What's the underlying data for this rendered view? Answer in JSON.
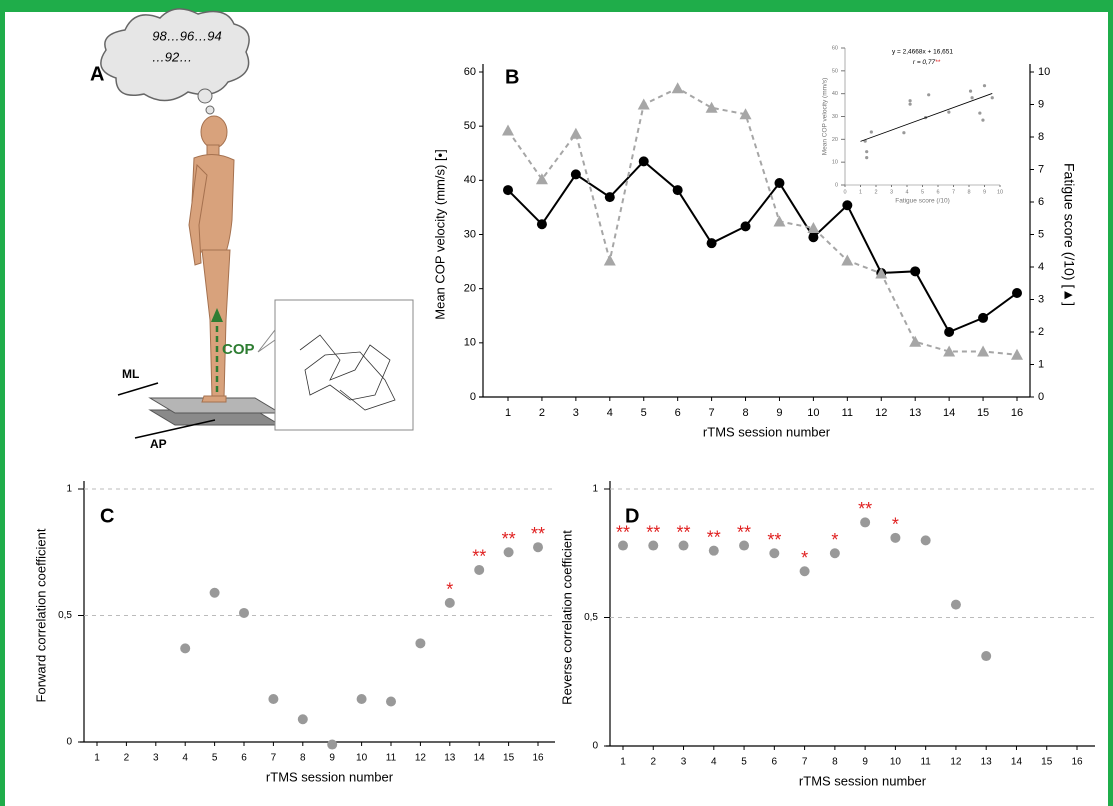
{
  "panel_a": {
    "panel": "A",
    "thought": [
      "98…96…94",
      "…92…"
    ],
    "ml": "ML",
    "cop": "COP",
    "ap": "AP"
  },
  "chart_data": [
    {
      "type": "line",
      "panel": "B",
      "categories": [
        "1",
        "2",
        "3",
        "4",
        "5",
        "6",
        "7",
        "8",
        "9",
        "10",
        "11",
        "12",
        "13",
        "14",
        "15",
        "16"
      ],
      "xlabel": "rTMS session number",
      "ylabel": "Mean COP velocity (mm/s) [•]",
      "y2label": "Fatigue score (/10) [▲]",
      "ylim": [
        0,
        60
      ],
      "yticks": [
        0,
        10,
        20,
        30,
        40,
        50,
        60
      ],
      "y2lim": [
        0,
        10
      ],
      "y2ticks": [
        0,
        1,
        2,
        3,
        4,
        5,
        6,
        7,
        8,
        9,
        10
      ],
      "series": [
        {
          "color": "#000000",
          "marker": "circle",
          "dash": false,
          "values": [
            38.2,
            31.9,
            41.1,
            36.9,
            43.5,
            38.2,
            28.4,
            31.5,
            39.5,
            29.5,
            35.4,
            22.9,
            23.2,
            12,
            14.6,
            19.2
          ]
        },
        {
          "color": "#a6a6a6",
          "marker": "triangle",
          "dash": true,
          "axis": "y2",
          "values": [
            8.2,
            6.7,
            8.1,
            4.2,
            9.0,
            9.5,
            8.9,
            8.7,
            5.4,
            5.2,
            4.2,
            3.8,
            1.7,
            1.4,
            1.4,
            1.3
          ]
        }
      ]
    },
    {
      "type": "scatter",
      "equation": "y = 2,4668x + 16,651",
      "r_text": "r = 0,77",
      "r_significance": "**",
      "xlabel": "Fatigue score (/10)",
      "ylabel": "Mean COP velocity (mm/s)",
      "xlim": [
        0,
        10
      ],
      "xticks": [
        0,
        1,
        2,
        3,
        4,
        5,
        6,
        7,
        8,
        9,
        10
      ],
      "ylim": [
        0,
        60
      ],
      "yticks": [
        0,
        10,
        20,
        30,
        40,
        50,
        60
      ],
      "x": [
        8.2,
        6.7,
        8.1,
        4.2,
        9.0,
        9.5,
        8.9,
        8.7,
        5.4,
        5.2,
        4.2,
        3.8,
        1.7,
        1.4,
        1.4,
        1.3
      ],
      "y": [
        38.2,
        31.9,
        41.1,
        36.9,
        43.5,
        38.2,
        28.4,
        31.5,
        39.5,
        29.5,
        35.4,
        22.9,
        23.2,
        12,
        14.6,
        19.2
      ],
      "color": "#999999",
      "trendline": {
        "x": [
          1,
          9.5
        ],
        "y": [
          19.1,
          40.1
        ]
      }
    },
    {
      "type": "scatter",
      "panel": "C",
      "categories": [
        "1",
        "2",
        "3",
        "4",
        "5",
        "6",
        "7",
        "8",
        "9",
        "10",
        "11",
        "12",
        "13",
        "14",
        "15",
        "16"
      ],
      "xlabel": "rTMS session number",
      "ylabel": "Forward correlation coefficient",
      "ylim": [
        0,
        1
      ],
      "yticks": [
        0,
        {
          "value": 0.5,
          "label": "0,5"
        },
        1
      ],
      "grid": true,
      "color": "#999999",
      "values": [
        null,
        null,
        null,
        0.37,
        0.59,
        0.51,
        0.17,
        0.09,
        -0.01,
        0.17,
        0.16,
        0.39,
        0.55,
        0.68,
        0.75,
        0.77
      ],
      "significance": [
        null,
        null,
        null,
        null,
        null,
        null,
        null,
        null,
        null,
        null,
        null,
        null,
        "*",
        "**",
        "**",
        "**"
      ]
    },
    {
      "type": "scatter",
      "panel": "D",
      "categories": [
        "1",
        "2",
        "3",
        "4",
        "5",
        "6",
        "7",
        "8",
        "9",
        "10",
        "11",
        "12",
        "13",
        "14",
        "15",
        "16"
      ],
      "xlabel": "rTMS session number",
      "ylabel": "Reverse correlation coefficient",
      "ylim": [
        0,
        1
      ],
      "yticks": [
        0,
        {
          "value": 0.5,
          "label": "0,5"
        },
        1
      ],
      "grid": true,
      "color": "#999999",
      "values": [
        0.78,
        0.78,
        0.78,
        0.76,
        0.78,
        0.75,
        0.68,
        0.75,
        0.87,
        0.81,
        0.8,
        0.55,
        0.35,
        null,
        null,
        null
      ],
      "significance": [
        "**",
        "**",
        "**",
        "**",
        "**",
        "**",
        "*",
        "*",
        "**",
        "*",
        null,
        null,
        null,
        null,
        null,
        null
      ]
    }
  ]
}
